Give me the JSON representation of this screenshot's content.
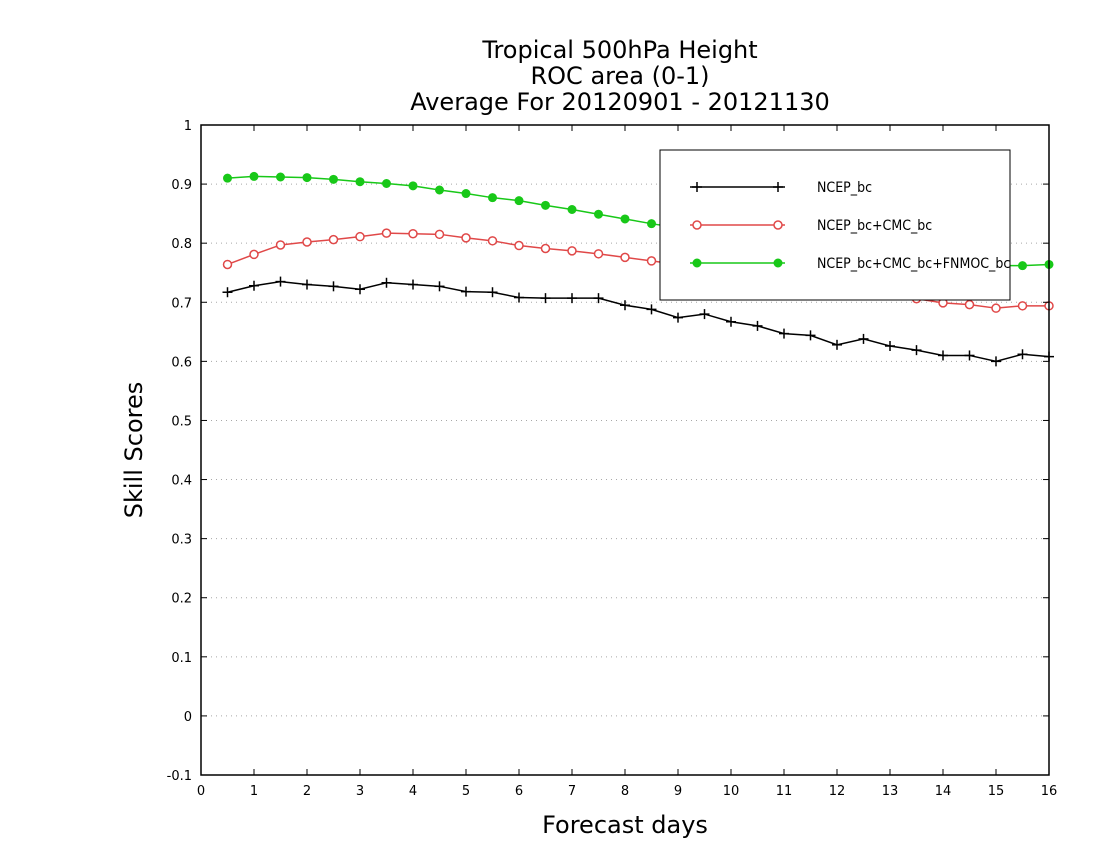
{
  "chart_data": {
    "type": "line",
    "title_lines": [
      "Tropical 500hPa Height",
      "ROC area (0-1)",
      "Average For 20120901 - 20121130"
    ],
    "xlabel": "Forecast days",
    "ylabel": "Skill Scores",
    "xlim": [
      0,
      16
    ],
    "ylim": [
      -0.1,
      1
    ],
    "xticks": [
      "0",
      "1",
      "2",
      "3",
      "4",
      "5",
      "6",
      "7",
      "8",
      "9",
      "10",
      "11",
      "12",
      "13",
      "14",
      "15",
      "16"
    ],
    "yticks": [
      "-0.1",
      "0",
      "0.1",
      "0.2",
      "0.3",
      "0.4",
      "0.5",
      "0.6",
      "0.7",
      "0.8",
      "0.9",
      "1"
    ],
    "grid": "horizontal dotted",
    "legend_position": "top-right",
    "x": [
      0.5,
      1,
      1.5,
      2,
      2.5,
      3,
      3.5,
      4,
      4.5,
      5,
      5.5,
      6,
      6.5,
      7,
      7.5,
      8,
      8.5,
      9,
      9.5,
      10,
      10.5,
      11,
      11.5,
      12,
      12.5,
      13,
      13.5,
      14,
      14.5,
      15,
      15.5,
      16
    ],
    "series": [
      {
        "name": "NCEP_bc",
        "color": "#000000",
        "marker": "plus",
        "values": [
          0.717,
          0.728,
          0.735,
          0.73,
          0.727,
          0.722,
          0.733,
          0.73,
          0.727,
          0.718,
          0.717,
          0.708,
          0.707,
          0.707,
          0.707,
          0.695,
          0.688,
          0.674,
          0.68,
          0.667,
          0.66,
          0.647,
          0.644,
          0.628,
          0.638,
          0.626,
          0.619,
          0.61,
          0.61,
          0.6,
          0.612,
          0.608
        ]
      },
      {
        "name": "NCEP_bc+CMC_bc",
        "color": "#e04848",
        "marker": "open-circle",
        "values": [
          0.764,
          0.781,
          0.797,
          0.802,
          0.806,
          0.811,
          0.817,
          0.816,
          0.815,
          0.809,
          0.804,
          0.796,
          0.791,
          0.787,
          0.782,
          0.776,
          0.77,
          0.764,
          0.758,
          0.752,
          0.746,
          0.74,
          0.735,
          0.728,
          0.72,
          0.713,
          0.706,
          0.699,
          0.696,
          0.69,
          0.694,
          0.694
        ]
      },
      {
        "name": "NCEP_bc+CMC_bc+FNMOC_bc",
        "color": "#18c818",
        "marker": "filled-circle",
        "values": [
          0.91,
          0.913,
          0.912,
          0.911,
          0.908,
          0.904,
          0.901,
          0.897,
          0.89,
          0.884,
          0.877,
          0.872,
          0.864,
          0.857,
          0.849,
          0.841,
          0.833,
          0.826,
          0.818,
          0.81,
          0.802,
          0.795,
          0.788,
          0.782,
          0.777,
          0.773,
          0.769,
          0.766,
          0.764,
          0.762,
          0.762,
          0.764
        ]
      }
    ]
  }
}
